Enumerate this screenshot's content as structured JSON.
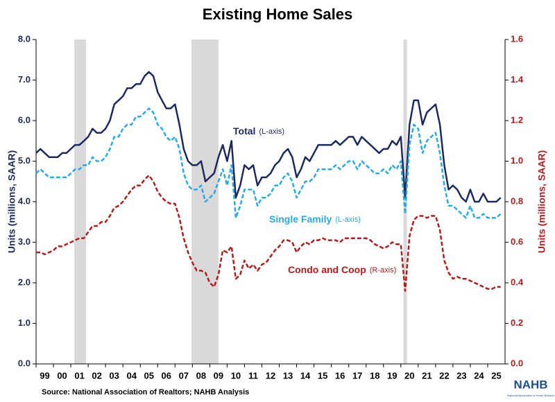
{
  "chart_data": {
    "type": "line",
    "title": "Existing Home Sales",
    "source": "Source: National Association of Realtors; NAHB Analysis",
    "logo": {
      "text": "NAHB",
      "subtext": "National Association of Home Builders"
    },
    "y_label": "Units (millions, SAAR)",
    "y2_label": "Units (millions, SAAR)",
    "xlim": [
      1999,
      2026
    ],
    "xticks": [
      {
        "value": 1999,
        "label": "99"
      },
      {
        "value": 2000,
        "label": "00"
      },
      {
        "value": 2001,
        "label": "01"
      },
      {
        "value": 2002,
        "label": "02"
      },
      {
        "value": 2003,
        "label": "03"
      },
      {
        "value": 2004,
        "label": "04"
      },
      {
        "value": 2005,
        "label": "05"
      },
      {
        "value": 2006,
        "label": "06"
      },
      {
        "value": 2007,
        "label": "07"
      },
      {
        "value": 2008,
        "label": "08"
      },
      {
        "value": 2009,
        "label": "09"
      },
      {
        "value": 2010,
        "label": "10"
      },
      {
        "value": 2011,
        "label": "11"
      },
      {
        "value": 2012,
        "label": "12"
      },
      {
        "value": 2013,
        "label": "13"
      },
      {
        "value": 2014,
        "label": "14"
      },
      {
        "value": 2015,
        "label": "15"
      },
      {
        "value": 2016,
        "label": "16"
      },
      {
        "value": 2017,
        "label": "17"
      },
      {
        "value": 2018,
        "label": "18"
      },
      {
        "value": 2019,
        "label": "19"
      },
      {
        "value": 2020,
        "label": "20"
      },
      {
        "value": 2021,
        "label": "21"
      },
      {
        "value": 2022,
        "label": "22"
      },
      {
        "value": 2023,
        "label": "23"
      },
      {
        "value": 2024,
        "label": "24"
      },
      {
        "value": 2025,
        "label": "25"
      }
    ],
    "ylim": [
      0,
      8
    ],
    "yticks": [
      {
        "value": 0,
        "label": "0.0"
      },
      {
        "value": 1,
        "label": "1.0"
      },
      {
        "value": 2,
        "label": "2.0"
      },
      {
        "value": 3,
        "label": "3.0"
      },
      {
        "value": 4,
        "label": "4.0"
      },
      {
        "value": 5,
        "label": "5.0"
      },
      {
        "value": 6,
        "label": "6.0"
      },
      {
        "value": 7,
        "label": "7.0"
      },
      {
        "value": 8,
        "label": "8.0"
      }
    ],
    "y2lim": [
      0,
      1.6
    ],
    "y2ticks": [
      {
        "value": 0,
        "label": "0.0"
      },
      0.2,
      0.4,
      0.6,
      0.8,
      {
        "value": 1,
        "label": "1.0"
      },
      1.2,
      1.4,
      1.6
    ],
    "shaded_periods": [
      [
        2001.2,
        2001.88
      ],
      [
        2007.95,
        2009.5
      ],
      [
        2020.15,
        2020.35
      ]
    ],
    "x": [
      1999,
      1999.25,
      1999.5,
      1999.75,
      2000,
      2000.25,
      2000.5,
      2000.75,
      2001,
      2001.25,
      2001.5,
      2001.75,
      2002,
      2002.25,
      2002.5,
      2002.75,
      2003,
      2003.25,
      2003.5,
      2003.75,
      2004,
      2004.25,
      2004.5,
      2004.75,
      2005,
      2005.25,
      2005.5,
      2005.75,
      2006,
      2006.25,
      2006.5,
      2006.75,
      2007,
      2007.25,
      2007.5,
      2007.75,
      2008,
      2008.25,
      2008.5,
      2008.75,
      2009,
      2009.25,
      2009.5,
      2009.75,
      2010,
      2010.25,
      2010.5,
      2010.75,
      2011,
      2011.25,
      2011.5,
      2011.75,
      2012,
      2012.25,
      2012.5,
      2012.75,
      2013,
      2013.25,
      2013.5,
      2013.75,
      2014,
      2014.25,
      2014.5,
      2014.75,
      2015,
      2015.25,
      2015.5,
      2015.75,
      2016,
      2016.25,
      2016.5,
      2016.75,
      2017,
      2017.25,
      2017.5,
      2017.75,
      2018,
      2018.25,
      2018.5,
      2018.75,
      2019,
      2019.25,
      2019.5,
      2019.75,
      2020,
      2020.25,
      2020.5,
      2020.75,
      2021,
      2021.25,
      2021.5,
      2021.75,
      2022,
      2022.25,
      2022.5,
      2022.75,
      2023,
      2023.25,
      2023.5,
      2023.75,
      2024,
      2024.25,
      2024.5,
      2024.75,
      2025,
      2025.25,
      2025.5,
      2025.75
    ],
    "series": [
      {
        "name": "Total",
        "axis_note": "(L-axis)",
        "color": "#1b2a5e",
        "dashed": false,
        "values": [
          5.2,
          5.3,
          5.2,
          5.1,
          5.1,
          5.1,
          5.2,
          5.2,
          5.3,
          5.4,
          5.4,
          5.5,
          5.6,
          5.8,
          5.7,
          5.7,
          5.8,
          6.0,
          6.4,
          6.5,
          6.6,
          6.8,
          6.8,
          6.9,
          6.9,
          7.1,
          7.2,
          7.1,
          6.7,
          6.5,
          6.3,
          6.3,
          6.4,
          5.9,
          5.3,
          5.0,
          4.9,
          4.9,
          5.0,
          4.5,
          4.6,
          4.7,
          5.1,
          5.4,
          5.0,
          5.5,
          4.1,
          4.4,
          4.9,
          4.8,
          4.9,
          4.4,
          4.6,
          4.6,
          4.7,
          4.9,
          5.0,
          5.2,
          5.3,
          5.1,
          4.6,
          4.8,
          5.1,
          5.0,
          5.2,
          5.4,
          5.4,
          5.4,
          5.4,
          5.5,
          5.4,
          5.5,
          5.6,
          5.6,
          5.4,
          5.6,
          5.5,
          5.4,
          5.3,
          5.2,
          5.3,
          5.3,
          5.5,
          5.4,
          5.6,
          4.1,
          5.9,
          6.5,
          6.5,
          5.9,
          6.2,
          6.3,
          6.4,
          5.9,
          4.9,
          4.3,
          4.4,
          4.3,
          4.1,
          4.0,
          4.3,
          4.0,
          4.0,
          4.2,
          4.0,
          4.0,
          4.0,
          4.1
        ]
      },
      {
        "name": "Single Family",
        "axis_note": "(L-axis)",
        "color": "#29aae1",
        "dashed": true,
        "values": [
          4.7,
          4.8,
          4.7,
          4.6,
          4.6,
          4.6,
          4.6,
          4.6,
          4.7,
          4.8,
          4.8,
          4.9,
          4.9,
          5.1,
          5.0,
          5.0,
          5.1,
          5.3,
          5.6,
          5.6,
          5.8,
          5.9,
          5.9,
          6.1,
          6.1,
          6.2,
          6.3,
          6.2,
          5.9,
          5.8,
          5.6,
          5.5,
          5.6,
          5.3,
          4.7,
          4.4,
          4.3,
          4.3,
          4.4,
          4.0,
          4.1,
          4.2,
          4.5,
          4.8,
          4.4,
          4.9,
          3.6,
          3.9,
          4.3,
          4.3,
          4.3,
          3.9,
          4.1,
          4.1,
          4.2,
          4.4,
          4.4,
          4.6,
          4.7,
          4.5,
          4.1,
          4.3,
          4.5,
          4.5,
          4.6,
          4.8,
          4.8,
          4.8,
          4.8,
          4.9,
          4.8,
          4.9,
          5.0,
          5.0,
          4.8,
          5.0,
          4.9,
          4.8,
          4.7,
          4.7,
          4.8,
          4.7,
          4.9,
          4.8,
          5.0,
          3.7,
          5.4,
          5.9,
          5.8,
          5.2,
          5.5,
          5.6,
          5.7,
          5.2,
          4.4,
          3.9,
          3.9,
          3.8,
          3.7,
          3.6,
          3.9,
          3.6,
          3.6,
          3.7,
          3.6,
          3.6,
          3.6,
          3.7
        ]
      },
      {
        "name": "Condo and Coop",
        "axis_note": "(R-axis)",
        "color": "#b01d1d",
        "dashed": true,
        "axis": "y2",
        "values": [
          0.55,
          0.55,
          0.54,
          0.55,
          0.56,
          0.58,
          0.58,
          0.59,
          0.6,
          0.61,
          0.62,
          0.62,
          0.65,
          0.68,
          0.68,
          0.7,
          0.7,
          0.73,
          0.77,
          0.78,
          0.8,
          0.83,
          0.86,
          0.88,
          0.88,
          0.91,
          0.93,
          0.9,
          0.85,
          0.82,
          0.8,
          0.79,
          0.79,
          0.72,
          0.62,
          0.55,
          0.5,
          0.46,
          0.46,
          0.45,
          0.4,
          0.38,
          0.44,
          0.56,
          0.55,
          0.58,
          0.42,
          0.44,
          0.51,
          0.47,
          0.49,
          0.46,
          0.49,
          0.5,
          0.53,
          0.56,
          0.58,
          0.61,
          0.61,
          0.6,
          0.55,
          0.58,
          0.6,
          0.59,
          0.61,
          0.61,
          0.62,
          0.61,
          0.61,
          0.61,
          0.6,
          0.62,
          0.62,
          0.62,
          0.62,
          0.62,
          0.62,
          0.61,
          0.59,
          0.58,
          0.57,
          0.58,
          0.6,
          0.59,
          0.59,
          0.36,
          0.63,
          0.71,
          0.73,
          0.73,
          0.72,
          0.73,
          0.73,
          0.66,
          0.51,
          0.45,
          0.42,
          0.43,
          0.42,
          0.42,
          0.41,
          0.4,
          0.39,
          0.38,
          0.37,
          0.37,
          0.38,
          0.38
        ]
      }
    ]
  }
}
